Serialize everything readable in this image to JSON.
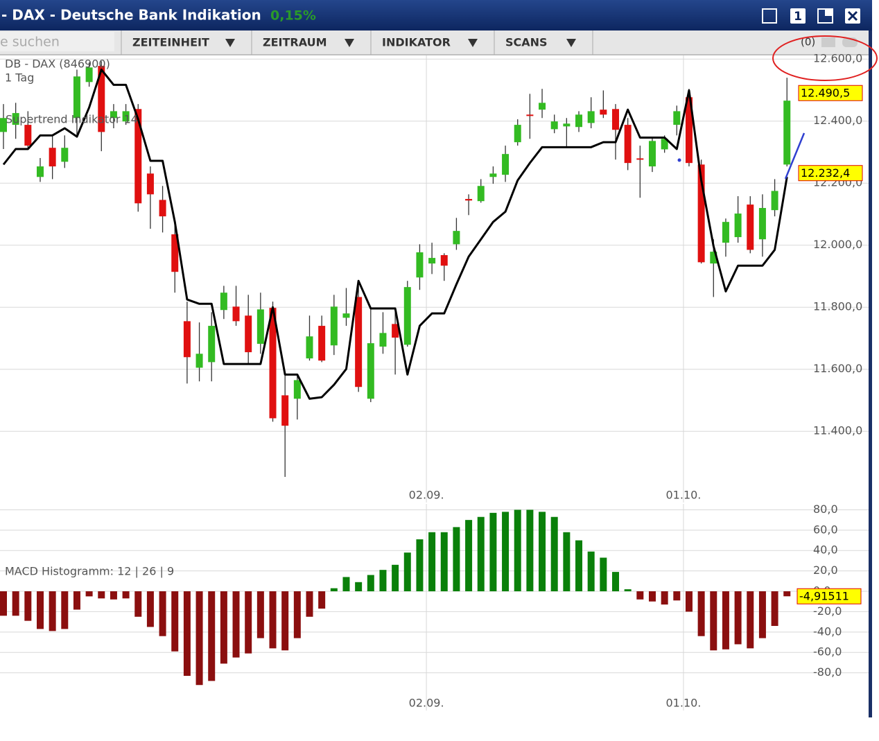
{
  "window": {
    "title": "- DAX - Deutsche Bank Indikation",
    "change": "0,15%",
    "button": "1"
  },
  "toolbar": {
    "search": "e suchen",
    "menus": [
      "ZEITEINHEIT",
      "ZEITRAUM",
      "INDIKATOR",
      "SCANS"
    ],
    "counter": "(0)"
  },
  "chart_data": [
    {
      "type": "candlestick",
      "title": "DB - DAX (846900)",
      "subtitle": "1 Tag",
      "categories": [
        null,
        null,
        null,
        null,
        null,
        null,
        null,
        null,
        null,
        null,
        null,
        null,
        null,
        null,
        null,
        null,
        null,
        null,
        null,
        null,
        null,
        null,
        null,
        null,
        null,
        null,
        null,
        null,
        null,
        null,
        null,
        null,
        null,
        null,
        null,
        "02.09.",
        null,
        null,
        null,
        null,
        null,
        null,
        null,
        null,
        null,
        null,
        null,
        null,
        null,
        null,
        null,
        null,
        null,
        null,
        null,
        null,
        "01.10.",
        null,
        null,
        null,
        null,
        null,
        null,
        null,
        null
      ],
      "open": [
        12365,
        12388,
        12388,
        12220,
        12314,
        12269,
        12410,
        12526,
        12578,
        12410,
        12399,
        12439,
        12231,
        12146,
        12035,
        11755,
        11605,
        11623,
        11791,
        11802,
        11773,
        11682,
        11798,
        11516,
        11505,
        11635,
        11740,
        11677,
        11766,
        11833,
        11505,
        11673,
        11746,
        11679,
        11896,
        11941,
        11968,
        12003,
        12149,
        12142,
        12220,
        12227,
        12332,
        12421,
        12437,
        12374,
        12383,
        12381,
        12394,
        12437,
        12439,
        12388,
        12280,
        12254,
        12309,
        12388,
        12477,
        12260,
        11941,
        12008,
        12026,
        12131,
        12019,
        12113,
        12260
      ],
      "high": [
        12455,
        12459,
        12432,
        12281,
        12354,
        12354,
        12566,
        12589,
        12593,
        12455,
        12455,
        12455,
        12254,
        12191,
        12064,
        11818,
        11751,
        11784,
        11869,
        11869,
        11840,
        11847,
        11818,
        11583,
        11583,
        11773,
        11773,
        11840,
        11862,
        11869,
        11796,
        11784,
        11789,
        11885,
        12003,
        12008,
        11974,
        12088,
        12164,
        12213,
        12254,
        12321,
        12406,
        12488,
        12504,
        12421,
        12410,
        12432,
        12477,
        12499,
        12455,
        12410,
        12321,
        12347,
        12354,
        12450,
        12504,
        12276,
        12019,
        12086,
        12158,
        12158,
        12164,
        12213,
        12540
      ],
      "low": [
        12310,
        12343,
        12310,
        12204,
        12213,
        12249,
        12354,
        12511,
        12303,
        12377,
        12388,
        12108,
        12053,
        12041,
        11847,
        11554,
        11561,
        11561,
        11762,
        11740,
        11617,
        11650,
        11431,
        11253,
        11438,
        11628,
        11623,
        11646,
        11740,
        11527,
        11494,
        11650,
        11583,
        11673,
        11856,
        11907,
        11885,
        11985,
        12097,
        12137,
        12198,
        12204,
        12321,
        12343,
        12410,
        12361,
        12316,
        12365,
        12377,
        12410,
        12276,
        12242,
        12153,
        12236,
        12298,
        12354,
        12254,
        11941,
        11833,
        11963,
        12008,
        11974,
        11963,
        12093,
        12254
      ],
      "close": [
        12410,
        12426,
        12321,
        12254,
        12254,
        12314,
        12544,
        12573,
        12365,
        12432,
        12432,
        12135,
        12164,
        12093,
        11914,
        11639,
        11650,
        11740,
        11847,
        11755,
        11655,
        11793,
        11442,
        11418,
        11565,
        11706,
        11628,
        11802,
        11780,
        11543,
        11684,
        11717,
        11702,
        11865,
        11977,
        11959,
        11934,
        12046,
        12144,
        12191,
        12231,
        12294,
        12388,
        12417,
        12459,
        12399,
        12392,
        12421,
        12432,
        12421,
        12372,
        12265,
        12276,
        12336,
        12343,
        12432,
        12265,
        11945,
        11979,
        12075,
        12102,
        11985,
        12120,
        12175,
        12466
      ],
      "up_color": "#33bb22",
      "down_color": "#e01010",
      "series": [
        {
          "name": "Supertrend Indikator 14",
          "color": "#000000",
          "values": [
            12260,
            12310,
            12310,
            12354,
            12354,
            12377,
            12350,
            12444,
            12566,
            12517,
            12517,
            12406,
            12272,
            12272,
            12075,
            11825,
            11811,
            11811,
            11617,
            11617,
            11617,
            11617,
            11800,
            11583,
            11583,
            11505,
            11510,
            11550,
            11601,
            11885,
            11796,
            11796,
            11796,
            11583,
            11740,
            11780,
            11780,
            11874,
            11963,
            12019,
            12075,
            12108,
            12209,
            12265,
            12316,
            12316,
            12316,
            12316,
            12316,
            12332,
            12332,
            12437,
            12347,
            12347,
            12347,
            12310,
            12499,
            12209,
            11997,
            11851,
            11934,
            11934,
            11934,
            11985,
            12220
          ]
        }
      ],
      "price_labels": [
        {
          "value": 12490.5,
          "label": "12.490,5"
        },
        {
          "value": 12232.4,
          "label": "12.232,4"
        }
      ],
      "ylim": [
        11215,
        12605
      ],
      "yticks": [
        {
          "value": 12600,
          "label": "12.600,0"
        },
        {
          "value": 12400,
          "label": "12.400,0"
        },
        {
          "value": 12200,
          "label": "12.200,0"
        },
        {
          "value": 12000,
          "label": "12.000,0"
        },
        {
          "value": 11800,
          "label": "11.800,0"
        },
        {
          "value": 11600,
          "label": "11.600,0"
        },
        {
          "value": 11400,
          "label": "11.400,0"
        }
      ],
      "grid": true
    },
    {
      "type": "bar",
      "title": "MACD Histogramm: 12 | 26 | 9",
      "categories": [
        null,
        null,
        null,
        null,
        null,
        null,
        null,
        null,
        null,
        null,
        null,
        null,
        null,
        null,
        null,
        null,
        null,
        null,
        null,
        null,
        null,
        null,
        null,
        null,
        null,
        null,
        null,
        null,
        null,
        null,
        null,
        null,
        null,
        null,
        null,
        "02.09.",
        null,
        null,
        null,
        null,
        null,
        null,
        null,
        null,
        null,
        null,
        null,
        null,
        null,
        null,
        null,
        null,
        null,
        null,
        null,
        null,
        "01.10.",
        null,
        null,
        null,
        null,
        null,
        null,
        null,
        null
      ],
      "values": [
        -24,
        -24,
        -29,
        -37,
        -39,
        -37,
        -18,
        -5,
        -7,
        -8,
        -7,
        -25,
        -35,
        -44,
        -59,
        -83,
        -92,
        -88,
        -71,
        -65,
        -61,
        -46,
        -56,
        -58,
        -46,
        -25,
        -17,
        3,
        14,
        9,
        16,
        21,
        26,
        38,
        51,
        58,
        58,
        63,
        70,
        73,
        77,
        78,
        80,
        80,
        78,
        73,
        58,
        50,
        39,
        33,
        19,
        2,
        -8,
        -10,
        -13,
        -9,
        -20,
        -44,
        -58,
        -57,
        -52,
        -56,
        -46,
        -34,
        -4.91511
      ],
      "last_label": {
        "value": -4.91511,
        "label": "-4,91511"
      },
      "up_color": "#0a800a",
      "down_color": "#8b0f0f",
      "ylim": [
        -100,
        83.7
      ],
      "yticks": [
        {
          "value": 80,
          "label": "80,0"
        },
        {
          "value": 60,
          "label": "60,0"
        },
        {
          "value": 40,
          "label": "40,0"
        },
        {
          "value": 20,
          "label": "20,0"
        },
        {
          "value": 0,
          "label": "0,0"
        },
        {
          "value": -20,
          "label": "-20,0"
        },
        {
          "value": -40,
          "label": "-40,0"
        },
        {
          "value": -60,
          "label": "-60,0"
        },
        {
          "value": -80,
          "label": "-80,0"
        }
      ],
      "grid": true
    }
  ]
}
